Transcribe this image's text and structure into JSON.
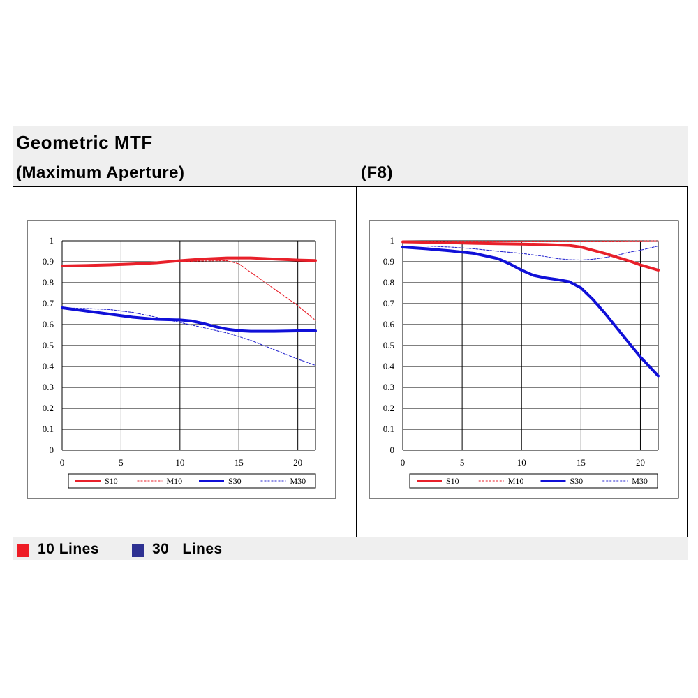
{
  "title": "Geometric MTF",
  "left_heading": "(Maximum Aperture)",
  "right_heading": "(F8)",
  "bottom_legend": [
    {
      "label": "10 Lines",
      "color": "#ee1c25"
    },
    {
      "label": "30   Lines",
      "color": "#2e3192"
    }
  ],
  "colors": {
    "s10": "#e8202a",
    "m10": "#e8202a",
    "s30": "#1010d8",
    "m30": "#2a2ad0"
  },
  "chart_data": [
    {
      "type": "line",
      "title": "",
      "xlabel": "",
      "ylabel": "",
      "xlim": [
        0,
        21.5
      ],
      "ylim": [
        0,
        1
      ],
      "xticks": [
        "0",
        "5",
        "10",
        "15",
        "20"
      ],
      "yticks": [
        "0",
        "0.1",
        "0.2",
        "0.3",
        "0.4",
        "0.5",
        "0.6",
        "0.7",
        "0.8",
        "0.9",
        "1"
      ],
      "grid": true,
      "legend": "bottom",
      "series": [
        {
          "name": "S10",
          "style": "solid",
          "color": "#e8202a",
          "x": [
            0,
            2,
            4,
            6,
            8,
            10,
            12,
            14,
            16,
            18,
            20,
            21.5
          ],
          "y": [
            0.88,
            0.882,
            0.885,
            0.889,
            0.895,
            0.905,
            0.913,
            0.918,
            0.918,
            0.913,
            0.908,
            0.906
          ]
        },
        {
          "name": "M10",
          "style": "dashed",
          "color": "#e8202a",
          "x": [
            0,
            2,
            4,
            6,
            8,
            10,
            12,
            14,
            15,
            16,
            17,
            18,
            19,
            20,
            21.5
          ],
          "y": [
            0.88,
            0.881,
            0.883,
            0.887,
            0.893,
            0.9,
            0.904,
            0.905,
            0.89,
            0.85,
            0.81,
            0.77,
            0.73,
            0.69,
            0.62
          ]
        },
        {
          "name": "S30",
          "style": "solid",
          "color": "#1010d8",
          "x": [
            0,
            2,
            4,
            6,
            8,
            10,
            11,
            12,
            13,
            14,
            15,
            16,
            18,
            20,
            21.5
          ],
          "y": [
            0.68,
            0.665,
            0.65,
            0.635,
            0.625,
            0.622,
            0.617,
            0.605,
            0.59,
            0.578,
            0.571,
            0.568,
            0.568,
            0.57,
            0.57
          ]
        },
        {
          "name": "M30",
          "style": "dashed",
          "color": "#2a2ad0",
          "x": [
            0,
            2,
            4,
            6,
            8,
            10,
            12,
            14,
            16,
            18,
            20,
            21.5
          ],
          "y": [
            0.68,
            0.677,
            0.672,
            0.658,
            0.635,
            0.61,
            0.585,
            0.56,
            0.525,
            0.48,
            0.435,
            0.405
          ]
        }
      ]
    },
    {
      "type": "line",
      "title": "",
      "xlabel": "",
      "ylabel": "",
      "xlim": [
        0,
        21.5
      ],
      "ylim": [
        0,
        1
      ],
      "xticks": [
        "0",
        "5",
        "10",
        "15",
        "20"
      ],
      "yticks": [
        "0",
        "0.1",
        "0.2",
        "0.3",
        "0.4",
        "0.5",
        "0.6",
        "0.7",
        "0.8",
        "0.9",
        "1"
      ],
      "grid": true,
      "legend": "bottom",
      "series": [
        {
          "name": "S10",
          "style": "solid",
          "color": "#e8202a",
          "x": [
            0,
            2,
            4,
            6,
            8,
            10,
            12,
            14,
            15,
            16,
            17,
            18,
            19,
            20,
            21.5
          ],
          "y": [
            0.995,
            0.993,
            0.991,
            0.988,
            0.986,
            0.984,
            0.982,
            0.978,
            0.97,
            0.955,
            0.94,
            0.922,
            0.905,
            0.885,
            0.86
          ]
        },
        {
          "name": "M10",
          "style": "dashed",
          "color": "#e8202a",
          "x": [
            0,
            5,
            10,
            15,
            20,
            21.5
          ],
          "y": [
            0.998,
            0.998,
            0.998,
            0.998,
            0.999,
            1.0
          ]
        },
        {
          "name": "S30",
          "style": "solid",
          "color": "#1010d8",
          "x": [
            0,
            2,
            4,
            6,
            8,
            9,
            10,
            11,
            12,
            13,
            14,
            15,
            16,
            17,
            18,
            19,
            20,
            21.5
          ],
          "y": [
            0.97,
            0.962,
            0.952,
            0.94,
            0.915,
            0.89,
            0.86,
            0.835,
            0.823,
            0.815,
            0.805,
            0.775,
            0.72,
            0.655,
            0.585,
            0.515,
            0.445,
            0.355
          ]
        },
        {
          "name": "M30",
          "style": "dashed",
          "color": "#2a2ad0",
          "x": [
            0,
            2,
            4,
            6,
            8,
            10,
            12,
            13,
            14,
            15,
            16,
            17,
            18,
            19,
            20,
            21.5
          ],
          "y": [
            0.975,
            0.975,
            0.97,
            0.962,
            0.95,
            0.94,
            0.925,
            0.915,
            0.91,
            0.908,
            0.912,
            0.92,
            0.93,
            0.945,
            0.955,
            0.975
          ]
        }
      ]
    }
  ]
}
